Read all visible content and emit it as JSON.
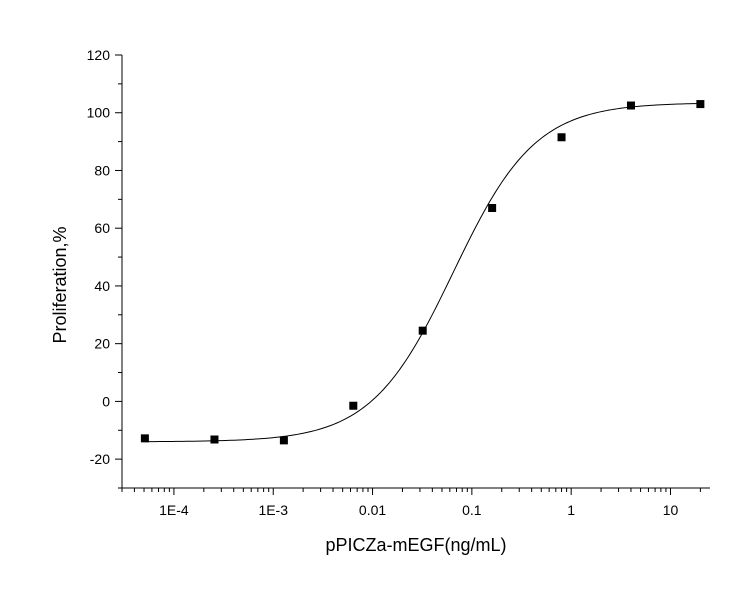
{
  "chart_data": {
    "type": "scatter",
    "title": "",
    "xlabel": "pPICZa-mEGF(ng/mL)",
    "ylabel": "Proliferation,%",
    "x_scale": "log",
    "xlim": [
      3e-05,
      25
    ],
    "ylim": [
      -30,
      120
    ],
    "x_ticks": [
      {
        "value": 0.0001,
        "label": "1E-4"
      },
      {
        "value": 0.001,
        "label": "1E-3"
      },
      {
        "value": 0.01,
        "label": "0.01"
      },
      {
        "value": 0.1,
        "label": "0.1"
      },
      {
        "value": 1,
        "label": "1"
      },
      {
        "value": 10,
        "label": "10"
      }
    ],
    "y_ticks": [
      {
        "value": -20,
        "label": "-20"
      },
      {
        "value": 0,
        "label": "0"
      },
      {
        "value": 20,
        "label": "20"
      },
      {
        "value": 40,
        "label": "40"
      },
      {
        "value": 60,
        "label": "60"
      },
      {
        "value": 80,
        "label": "80"
      },
      {
        "value": 100,
        "label": "100"
      },
      {
        "value": 120,
        "label": "120"
      }
    ],
    "grid": false,
    "legend": "none",
    "series": [
      {
        "marker": "square",
        "color": "#000000",
        "points": [
          {
            "x": 5.1e-05,
            "y": -12.8
          },
          {
            "x": 0.000256,
            "y": -13.2
          },
          {
            "x": 0.00128,
            "y": -13.5
          },
          {
            "x": 0.0064,
            "y": -1.5
          },
          {
            "x": 0.032,
            "y": 24.5
          },
          {
            "x": 0.16,
            "y": 67
          },
          {
            "x": 0.8,
            "y": 91.5
          },
          {
            "x": 4,
            "y": 102.5
          },
          {
            "x": 20,
            "y": 103
          }
        ]
      }
    ],
    "fit_curve": {
      "model": "4PL",
      "color": "#000000",
      "bottom": -14,
      "top": 103.5,
      "ec50": 0.065,
      "hill": 1.05
    }
  }
}
